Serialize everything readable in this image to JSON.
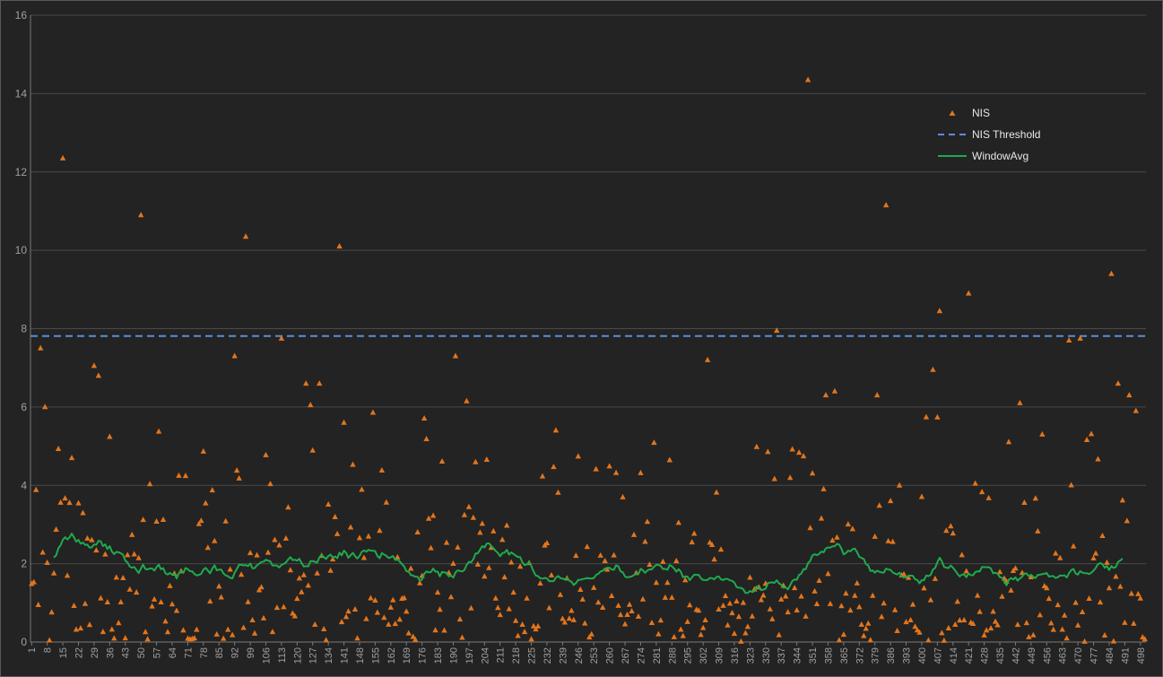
{
  "chart_data": {
    "type": "scatter",
    "title": "",
    "xlabel": "",
    "ylabel": "",
    "xlim": [
      1,
      500
    ],
    "ylim": [
      0,
      16
    ],
    "y_ticks": [
      0,
      2,
      4,
      6,
      8,
      10,
      12,
      14,
      16
    ],
    "x_tick_labels": [
      "1",
      "8",
      "15",
      "22",
      "29",
      "36",
      "43",
      "50",
      "57",
      "64",
      "71",
      "78",
      "85",
      "92",
      "99",
      "106",
      "113",
      "120",
      "127",
      "134",
      "141",
      "148",
      "155",
      "162",
      "169",
      "176",
      "183",
      "190",
      "197",
      "204",
      "211",
      "218",
      "225",
      "232",
      "239",
      "246",
      "253",
      "260",
      "267",
      "274",
      "281",
      "288",
      "295",
      "302",
      "309",
      "316",
      "323",
      "330",
      "337",
      "344",
      "351",
      "358",
      "365",
      "372",
      "379",
      "386",
      "393",
      "400",
      "407",
      "414",
      "421",
      "428",
      "435",
      "442",
      "449",
      "456",
      "463",
      "470",
      "477",
      "484",
      "491",
      "498"
    ],
    "grid": "horizontal",
    "legend": {
      "placement": "top-right",
      "entries": [
        {
          "label": "NIS",
          "marker": "triangle",
          "color": "#e3751c"
        },
        {
          "label": "NIS Threshold",
          "style": "dashed",
          "color": "#5b8fd8"
        },
        {
          "label": "WindowAvg",
          "style": "solid",
          "color": "#1faa4e"
        }
      ]
    },
    "threshold": {
      "name": "NIS Threshold",
      "value": 7.81
    },
    "series": [
      {
        "name": "NIS",
        "type": "scatter",
        "color": "#e3751c",
        "highlighted_points": [
          {
            "x": 5,
            "y": 7.5
          },
          {
            "x": 7,
            "y": 6.0
          },
          {
            "x": 15,
            "y": 12.35
          },
          {
            "x": 29,
            "y": 7.05
          },
          {
            "x": 31,
            "y": 6.8
          },
          {
            "x": 50,
            "y": 10.9
          },
          {
            "x": 92,
            "y": 7.3
          },
          {
            "x": 97,
            "y": 10.35
          },
          {
            "x": 113,
            "y": 7.75
          },
          {
            "x": 124,
            "y": 6.6
          },
          {
            "x": 126,
            "y": 6.05
          },
          {
            "x": 130,
            "y": 6.6
          },
          {
            "x": 139,
            "y": 10.1
          },
          {
            "x": 141,
            "y": 5.6
          },
          {
            "x": 191,
            "y": 7.3
          },
          {
            "x": 196,
            "y": 6.15
          },
          {
            "x": 304,
            "y": 7.2
          },
          {
            "x": 335,
            "y": 7.95
          },
          {
            "x": 349,
            "y": 14.35
          },
          {
            "x": 357,
            "y": 6.3
          },
          {
            "x": 361,
            "y": 6.4
          },
          {
            "x": 380,
            "y": 6.3
          },
          {
            "x": 384,
            "y": 11.15
          },
          {
            "x": 405,
            "y": 6.95
          },
          {
            "x": 408,
            "y": 8.45
          },
          {
            "x": 421,
            "y": 8.9
          },
          {
            "x": 444,
            "y": 6.1
          },
          {
            "x": 466,
            "y": 7.7
          },
          {
            "x": 471,
            "y": 7.75
          },
          {
            "x": 485,
            "y": 9.4
          },
          {
            "x": 488,
            "y": 6.6
          },
          {
            "x": 493,
            "y": 6.3
          },
          {
            "x": 496,
            "y": 5.9
          }
        ]
      },
      {
        "name": "WindowAvg",
        "type": "line",
        "color": "#1faa4e",
        "window": 30,
        "x_start": 11,
        "x_end": 490,
        "y_range_observed": [
          1.1,
          3.1
        ]
      }
    ]
  }
}
